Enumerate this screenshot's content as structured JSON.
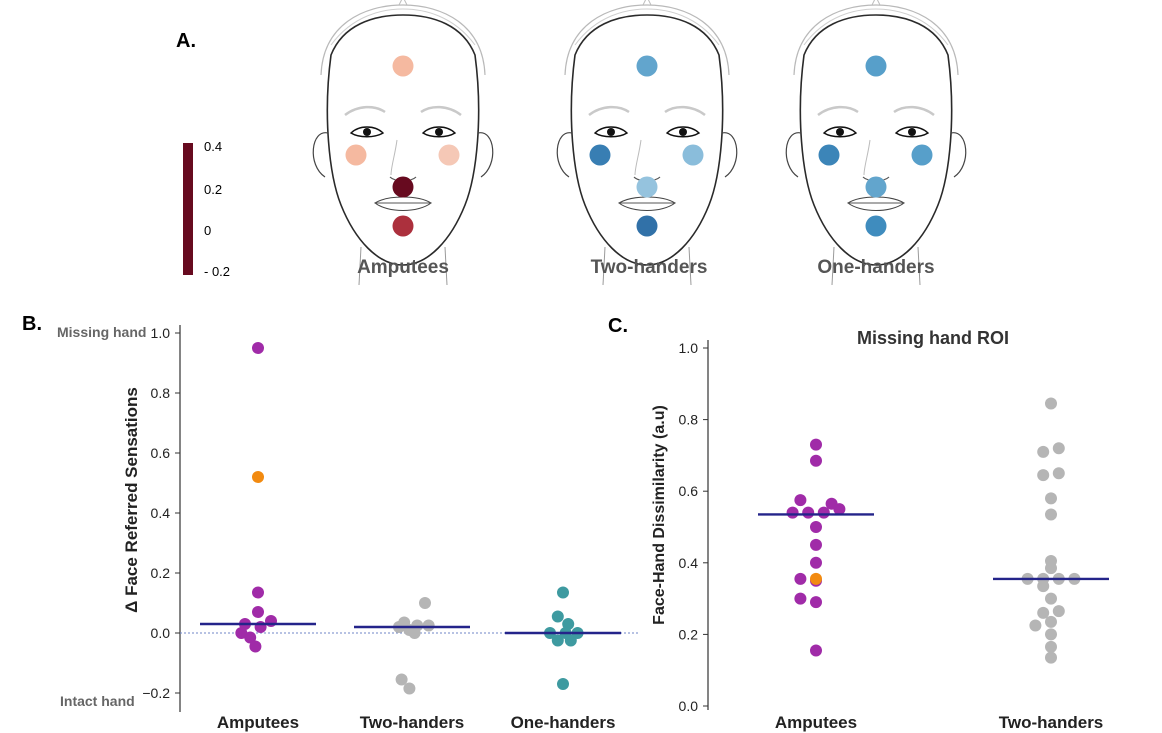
{
  "panel_a": {
    "letter": "A.",
    "colorbar": {
      "max_label": "0.4",
      "mid_high_label": "0.2",
      "zero_label": "0",
      "min_label": "- 0.2",
      "colors": [
        "#670a1f",
        "#c9404a",
        "#f4a98a",
        "#f7f7f7",
        "#a9cfe5",
        "#4393c3",
        "#1f4e8c"
      ],
      "vmin": -0.2,
      "vmax": 0.4
    },
    "faces": [
      {
        "label": "Amputees",
        "spots": [
          {
            "site": "forehead",
            "value": 0.18
          },
          {
            "site": "left-cheek",
            "value": 0.18
          },
          {
            "site": "right-cheek",
            "value": 0.16
          },
          {
            "site": "lip",
            "value": 0.42
          },
          {
            "site": "chin",
            "value": 0.33
          }
        ]
      },
      {
        "label": "Two-handers",
        "spots": [
          {
            "site": "forehead",
            "value": -0.07
          },
          {
            "site": "left-cheek",
            "value": -0.13
          },
          {
            "site": "right-cheek",
            "value": -0.03
          },
          {
            "site": "lip",
            "value": -0.02
          },
          {
            "site": "chin",
            "value": -0.15
          }
        ]
      },
      {
        "label": "One-handers",
        "spots": [
          {
            "site": "forehead",
            "value": -0.08
          },
          {
            "site": "left-cheek",
            "value": -0.12
          },
          {
            "site": "right-cheek",
            "value": -0.08
          },
          {
            "site": "lip",
            "value": -0.07
          },
          {
            "site": "chin",
            "value": -0.11
          }
        ]
      }
    ]
  },
  "chart_data": [
    {
      "type": "scatter",
      "panel_letter": "B.",
      "ylabel": "Δ Face Referred Sensations",
      "top_annotation": "Missing hand",
      "bottom_annotation": "Intact hand",
      "categories": [
        "Amputees",
        "Two-handers",
        "One-handers"
      ],
      "ylim": [
        -0.25,
        1.0
      ],
      "yticks": [
        "−0.2",
        "0.0",
        "0.2",
        "0.4",
        "0.6",
        "0.8",
        "1.0"
      ],
      "ytick_values": [
        -0.2,
        0.0,
        0.2,
        0.4,
        0.6,
        0.8,
        1.0
      ],
      "zero_line": true,
      "groups": [
        {
          "category": "Amputees",
          "color": "#a02ba8",
          "highlight_color": "#f28a10",
          "mean": 0.03,
          "points": [
            {
              "x": 0.0,
              "y": 0.95
            },
            {
              "x": 0.0,
              "y": 0.135
            },
            {
              "x": 0.0,
              "y": 0.07
            },
            {
              "x": -0.25,
              "y": 0.03
            },
            {
              "x": 0.25,
              "y": 0.04
            },
            {
              "x": 0.05,
              "y": 0.02
            },
            {
              "x": -0.32,
              "y": 0.0
            },
            {
              "x": -0.15,
              "y": -0.015
            },
            {
              "x": -0.05,
              "y": -0.045
            },
            {
              "x": 0.0,
              "y": 0.52,
              "highlight": true
            }
          ]
        },
        {
          "category": "Two-handers",
          "color": "#b5b5b5",
          "mean": 0.02,
          "points": [
            {
              "x": 0.25,
              "y": 0.1
            },
            {
              "x": -0.15,
              "y": 0.035
            },
            {
              "x": -0.25,
              "y": 0.02
            },
            {
              "x": 0.1,
              "y": 0.025
            },
            {
              "x": -0.05,
              "y": 0.01
            },
            {
              "x": 0.05,
              "y": 0.0
            },
            {
              "x": 0.32,
              "y": 0.025
            },
            {
              "x": -0.2,
              "y": -0.155
            },
            {
              "x": -0.05,
              "y": -0.185
            }
          ]
        },
        {
          "category": "One-handers",
          "color": "#3e9aa0",
          "mean": 0.0,
          "points": [
            {
              "x": 0.0,
              "y": 0.135
            },
            {
              "x": -0.1,
              "y": 0.055
            },
            {
              "x": 0.1,
              "y": 0.03
            },
            {
              "x": -0.25,
              "y": 0.0
            },
            {
              "x": 0.05,
              "y": 0.0
            },
            {
              "x": 0.28,
              "y": 0.0
            },
            {
              "x": -0.1,
              "y": -0.025
            },
            {
              "x": 0.15,
              "y": -0.025
            },
            {
              "x": 0.0,
              "y": -0.17
            }
          ]
        }
      ]
    },
    {
      "type": "scatter",
      "panel_letter": "C.",
      "title": "Missing hand ROI",
      "ylabel": "Face-Hand Dissimilarity (a.u)",
      "categories": [
        "Amputees",
        "Two-handers"
      ],
      "ylim": [
        0.0,
        1.0
      ],
      "yticks": [
        "0.0",
        "0.2",
        "0.4",
        "0.6",
        "0.8",
        "1.0"
      ],
      "ytick_values": [
        0.0,
        0.2,
        0.4,
        0.6,
        0.8,
        1.0
      ],
      "groups": [
        {
          "category": "Amputees",
          "color": "#a02ba8",
          "highlight_color": "#f28a10",
          "mean": 0.535,
          "points": [
            {
              "x": 0.0,
              "y": 0.73
            },
            {
              "x": 0.0,
              "y": 0.685
            },
            {
              "x": -0.3,
              "y": 0.575
            },
            {
              "x": 0.3,
              "y": 0.565
            },
            {
              "x": -0.45,
              "y": 0.54
            },
            {
              "x": -0.15,
              "y": 0.54
            },
            {
              "x": 0.15,
              "y": 0.54
            },
            {
              "x": 0.45,
              "y": 0.55
            },
            {
              "x": 0.0,
              "y": 0.5
            },
            {
              "x": 0.0,
              "y": 0.45
            },
            {
              "x": 0.0,
              "y": 0.4
            },
            {
              "x": -0.3,
              "y": 0.355
            },
            {
              "x": 0.0,
              "y": 0.35
            },
            {
              "x": -0.3,
              "y": 0.3
            },
            {
              "x": 0.0,
              "y": 0.29
            },
            {
              "x": 0.0,
              "y": 0.155
            },
            {
              "x": 0.0,
              "y": 0.355,
              "highlight": true
            }
          ]
        },
        {
          "category": "Two-handers",
          "color": "#b5b5b5",
          "mean": 0.355,
          "points": [
            {
              "x": 0.0,
              "y": 0.845
            },
            {
              "x": -0.15,
              "y": 0.71
            },
            {
              "x": 0.15,
              "y": 0.72
            },
            {
              "x": -0.15,
              "y": 0.645
            },
            {
              "x": 0.15,
              "y": 0.65
            },
            {
              "x": 0.0,
              "y": 0.58
            },
            {
              "x": 0.0,
              "y": 0.535
            },
            {
              "x": 0.0,
              "y": 0.405
            },
            {
              "x": 0.0,
              "y": 0.385
            },
            {
              "x": -0.45,
              "y": 0.355
            },
            {
              "x": -0.15,
              "y": 0.355
            },
            {
              "x": 0.15,
              "y": 0.355
            },
            {
              "x": 0.45,
              "y": 0.355
            },
            {
              "x": -0.15,
              "y": 0.335
            },
            {
              "x": 0.0,
              "y": 0.3
            },
            {
              "x": 0.15,
              "y": 0.265
            },
            {
              "x": -0.15,
              "y": 0.26
            },
            {
              "x": -0.3,
              "y": 0.225
            },
            {
              "x": 0.0,
              "y": 0.235
            },
            {
              "x": 0.0,
              "y": 0.2
            },
            {
              "x": 0.0,
              "y": 0.165
            },
            {
              "x": 0.0,
              "y": 0.135
            }
          ]
        }
      ]
    }
  ]
}
